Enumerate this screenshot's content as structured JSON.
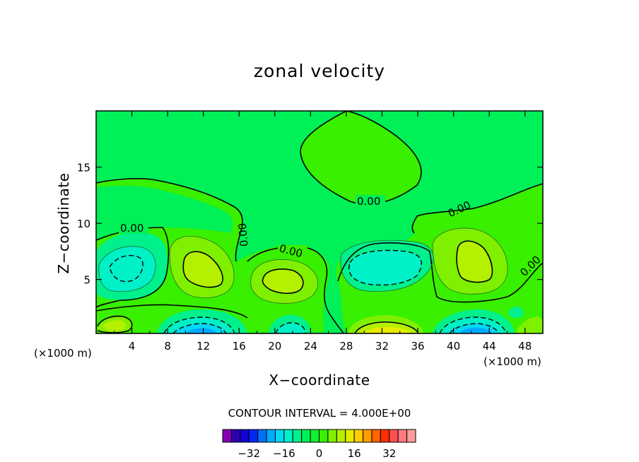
{
  "chart_data": {
    "type": "heatmap",
    "title": "zonal velocity",
    "xlabel": "X−coordinate",
    "ylabel": "Z−coordinate",
    "x_unit_label": "(×1000 m)",
    "xlim": [
      0,
      50
    ],
    "ylim": [
      0.2,
      20
    ],
    "x_ticks": [
      4,
      8,
      12,
      16,
      20,
      24,
      28,
      32,
      36,
      40,
      44,
      48
    ],
    "y_ticks": [
      5,
      10,
      15
    ],
    "contour_interval_text": "CONTOUR INTERVAL = 4.000E+00",
    "contour_interval": 4,
    "contour_label": "0.00",
    "colorbar": {
      "colors": [
        "#8800b4",
        "#2a00b0",
        "#1400d8",
        "#0028f4",
        "#0070f8",
        "#00aaff",
        "#00d8f4",
        "#00f0c8",
        "#00f08c",
        "#00f058",
        "#10f030",
        "#38f000",
        "#7ef000",
        "#b4f000",
        "#e6ec00",
        "#ffcc00",
        "#ff9c00",
        "#ff6400",
        "#ff3000",
        "#ff5050",
        "#ff7a7a",
        "#ff9c9c"
      ],
      "tick_values": [
        -32,
        -16,
        0,
        16,
        32
      ],
      "tick_labels": [
        "−32",
        "−16",
        "0",
        "16",
        "32"
      ]
    },
    "features": [
      {
        "kind": "min",
        "x": 12,
        "y": 0.7,
        "value": -16
      },
      {
        "kind": "min",
        "x": 41,
        "y": 0.7,
        "value": -16
      },
      {
        "kind": "min",
        "x": 6,
        "y": 6,
        "value": -8
      },
      {
        "kind": "min",
        "x": 33,
        "y": 6,
        "value": -8
      },
      {
        "kind": "max",
        "x": 12,
        "y": 5.8,
        "value": 8
      },
      {
        "kind": "max",
        "x": 21.5,
        "y": 5,
        "value": 8
      },
      {
        "kind": "max",
        "x": 43,
        "y": 6.5,
        "value": 8
      },
      {
        "kind": "max",
        "x": 33,
        "y": 0.6,
        "value": 12
      },
      {
        "kind": "max",
        "x": 2,
        "y": 1.0,
        "value": 4
      }
    ]
  },
  "colors": {
    "background": "#00f058",
    "line": "#000000"
  }
}
